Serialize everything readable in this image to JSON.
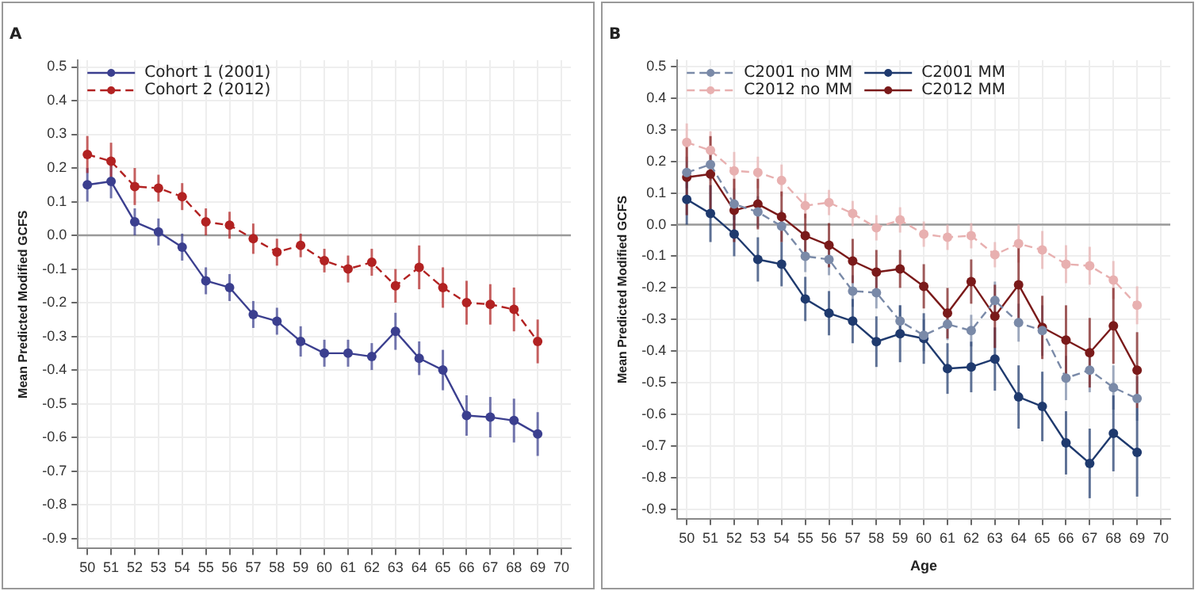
{
  "chart_data": [
    {
      "type": "line",
      "title": "A",
      "ylabel": "Mean Predicted Modified GCFS",
      "x": [
        50,
        51,
        52,
        53,
        54,
        55,
        56,
        57,
        58,
        59,
        60,
        61,
        62,
        63,
        64,
        65,
        66,
        67,
        68,
        69
      ],
      "xlim": [
        49.6,
        70.4
      ],
      "xticks": [
        50,
        51,
        52,
        53,
        54,
        55,
        56,
        57,
        58,
        59,
        60,
        61,
        62,
        63,
        64,
        65,
        66,
        67,
        68,
        69,
        70
      ],
      "ylim": [
        -0.93,
        0.52
      ],
      "yticks": [
        0.5,
        0.4,
        0.3,
        0.2,
        0.1,
        {
          "value": 0,
          "label": "0.0"
        },
        -0.1,
        -0.2,
        -0.3,
        -0.4,
        -0.5,
        -0.6,
        -0.7,
        -0.8,
        -0.9
      ],
      "grid": true,
      "legend": "top left",
      "marker": "circle",
      "ref_lines": [
        {
          "axis": "y",
          "value": 0,
          "color": "#999999"
        }
      ],
      "series": [
        {
          "name": "Cohort 1 (2001)",
          "color": "#3b3f8f",
          "line_style": "solid",
          "values": [
            0.15,
            0.16,
            0.04,
            0.01,
            -0.035,
            -0.135,
            -0.155,
            -0.235,
            -0.255,
            -0.315,
            -0.35,
            -0.35,
            -0.36,
            -0.285,
            -0.365,
            -0.4,
            -0.535,
            -0.54,
            -0.55,
            -0.59
          ],
          "errors": [
            0.05,
            0.05,
            0.04,
            0.04,
            0.04,
            0.04,
            0.04,
            0.04,
            0.04,
            0.045,
            0.04,
            0.04,
            0.04,
            0.055,
            0.05,
            0.06,
            0.06,
            0.06,
            0.065,
            0.065
          ]
        },
        {
          "name": "Cohort 2 (2012)",
          "color": "#b22222",
          "line_style": "dashed",
          "values": [
            0.24,
            0.22,
            0.145,
            0.14,
            0.115,
            0.04,
            0.03,
            -0.01,
            -0.05,
            -0.03,
            -0.075,
            -0.1,
            -0.08,
            -0.15,
            -0.095,
            -0.155,
            -0.2,
            -0.205,
            -0.22,
            -0.315
          ],
          "errors": [
            0.055,
            0.055,
            0.055,
            0.04,
            0.04,
            0.04,
            0.04,
            0.045,
            0.04,
            0.035,
            0.035,
            0.04,
            0.04,
            0.05,
            0.065,
            0.06,
            0.065,
            0.06,
            0.065,
            0.065
          ]
        }
      ]
    },
    {
      "type": "line",
      "title": "B",
      "xlabel": "Age",
      "ylabel": "Mean Predicted Modified GCFS",
      "x": [
        50,
        51,
        52,
        53,
        54,
        55,
        56,
        57,
        58,
        59,
        60,
        61,
        62,
        63,
        64,
        65,
        66,
        67,
        68,
        69
      ],
      "xlim": [
        49.6,
        70.4
      ],
      "xticks": [
        50,
        51,
        52,
        53,
        54,
        55,
        56,
        57,
        58,
        59,
        60,
        61,
        62,
        63,
        64,
        65,
        66,
        67,
        68,
        69,
        70
      ],
      "ylim": [
        -0.93,
        0.52
      ],
      "yticks": [
        0.5,
        0.4,
        0.3,
        0.2,
        0.1,
        {
          "value": 0,
          "label": "0.0"
        },
        -0.1,
        -0.2,
        -0.3,
        -0.4,
        -0.5,
        -0.6,
        -0.7,
        -0.8,
        -0.9
      ],
      "grid": true,
      "legend": "top left",
      "marker": "circle",
      "ref_lines": [
        {
          "axis": "y",
          "value": 0,
          "color": "#999999"
        }
      ],
      "series": [
        {
          "name": "C2001 no MM",
          "color": "#7a8aa8",
          "line_style": "dashed",
          "values": [
            0.165,
            0.19,
            0.065,
            0.04,
            -0.005,
            -0.1,
            -0.11,
            -0.21,
            -0.215,
            -0.305,
            -0.35,
            -0.315,
            -0.335,
            -0.24,
            -0.31,
            -0.335,
            -0.485,
            -0.46,
            -0.515,
            -0.55
          ],
          "errors": [
            0.05,
            0.05,
            0.05,
            0.05,
            0.05,
            0.05,
            0.05,
            0.05,
            0.05,
            0.05,
            0.05,
            0.05,
            0.05,
            0.06,
            0.06,
            0.08,
            0.07,
            0.07,
            0.07,
            0.07
          ]
        },
        {
          "name": "C2012 no MM",
          "color": "#e8b0b0",
          "line_style": "dashed",
          "values": [
            0.26,
            0.235,
            0.17,
            0.165,
            0.14,
            0.06,
            0.07,
            0.035,
            -0.01,
            0.015,
            -0.03,
            -0.04,
            -0.035,
            -0.095,
            -0.06,
            -0.08,
            -0.125,
            -0.13,
            -0.175,
            -0.255
          ],
          "errors": [
            0.06,
            0.06,
            0.06,
            0.05,
            0.05,
            0.04,
            0.04,
            0.04,
            0.04,
            0.04,
            0.04,
            0.04,
            0.04,
            0.04,
            0.06,
            0.06,
            0.06,
            0.06,
            0.06,
            0.06
          ]
        },
        {
          "name": "C2001 MM",
          "color": "#1f3a6e",
          "line_style": "solid",
          "values": [
            0.08,
            0.035,
            -0.03,
            -0.11,
            -0.125,
            -0.235,
            -0.28,
            -0.305,
            -0.37,
            -0.345,
            -0.36,
            -0.455,
            -0.45,
            -0.425,
            -0.545,
            -0.575,
            -0.69,
            -0.755,
            -0.66,
            -0.72
          ],
          "errors": [
            0.08,
            0.09,
            0.07,
            0.07,
            0.07,
            0.07,
            0.07,
            0.07,
            0.08,
            0.09,
            0.08,
            0.08,
            0.08,
            0.1,
            0.1,
            0.11,
            0.1,
            0.11,
            0.12,
            0.14
          ]
        },
        {
          "name": "C2012 MM",
          "color": "#7a1a1a",
          "line_style": "solid",
          "values": [
            0.15,
            0.16,
            0.045,
            0.065,
            0.025,
            -0.035,
            -0.065,
            -0.115,
            -0.15,
            -0.14,
            -0.195,
            -0.28,
            -0.18,
            -0.29,
            -0.19,
            -0.325,
            -0.365,
            -0.405,
            -0.32,
            -0.46
          ],
          "errors": [
            0.12,
            0.12,
            0.1,
            0.08,
            0.08,
            0.07,
            0.07,
            0.07,
            0.07,
            0.06,
            0.07,
            0.08,
            0.07,
            0.1,
            0.12,
            0.1,
            0.11,
            0.11,
            0.12,
            0.12
          ]
        }
      ]
    }
  ]
}
